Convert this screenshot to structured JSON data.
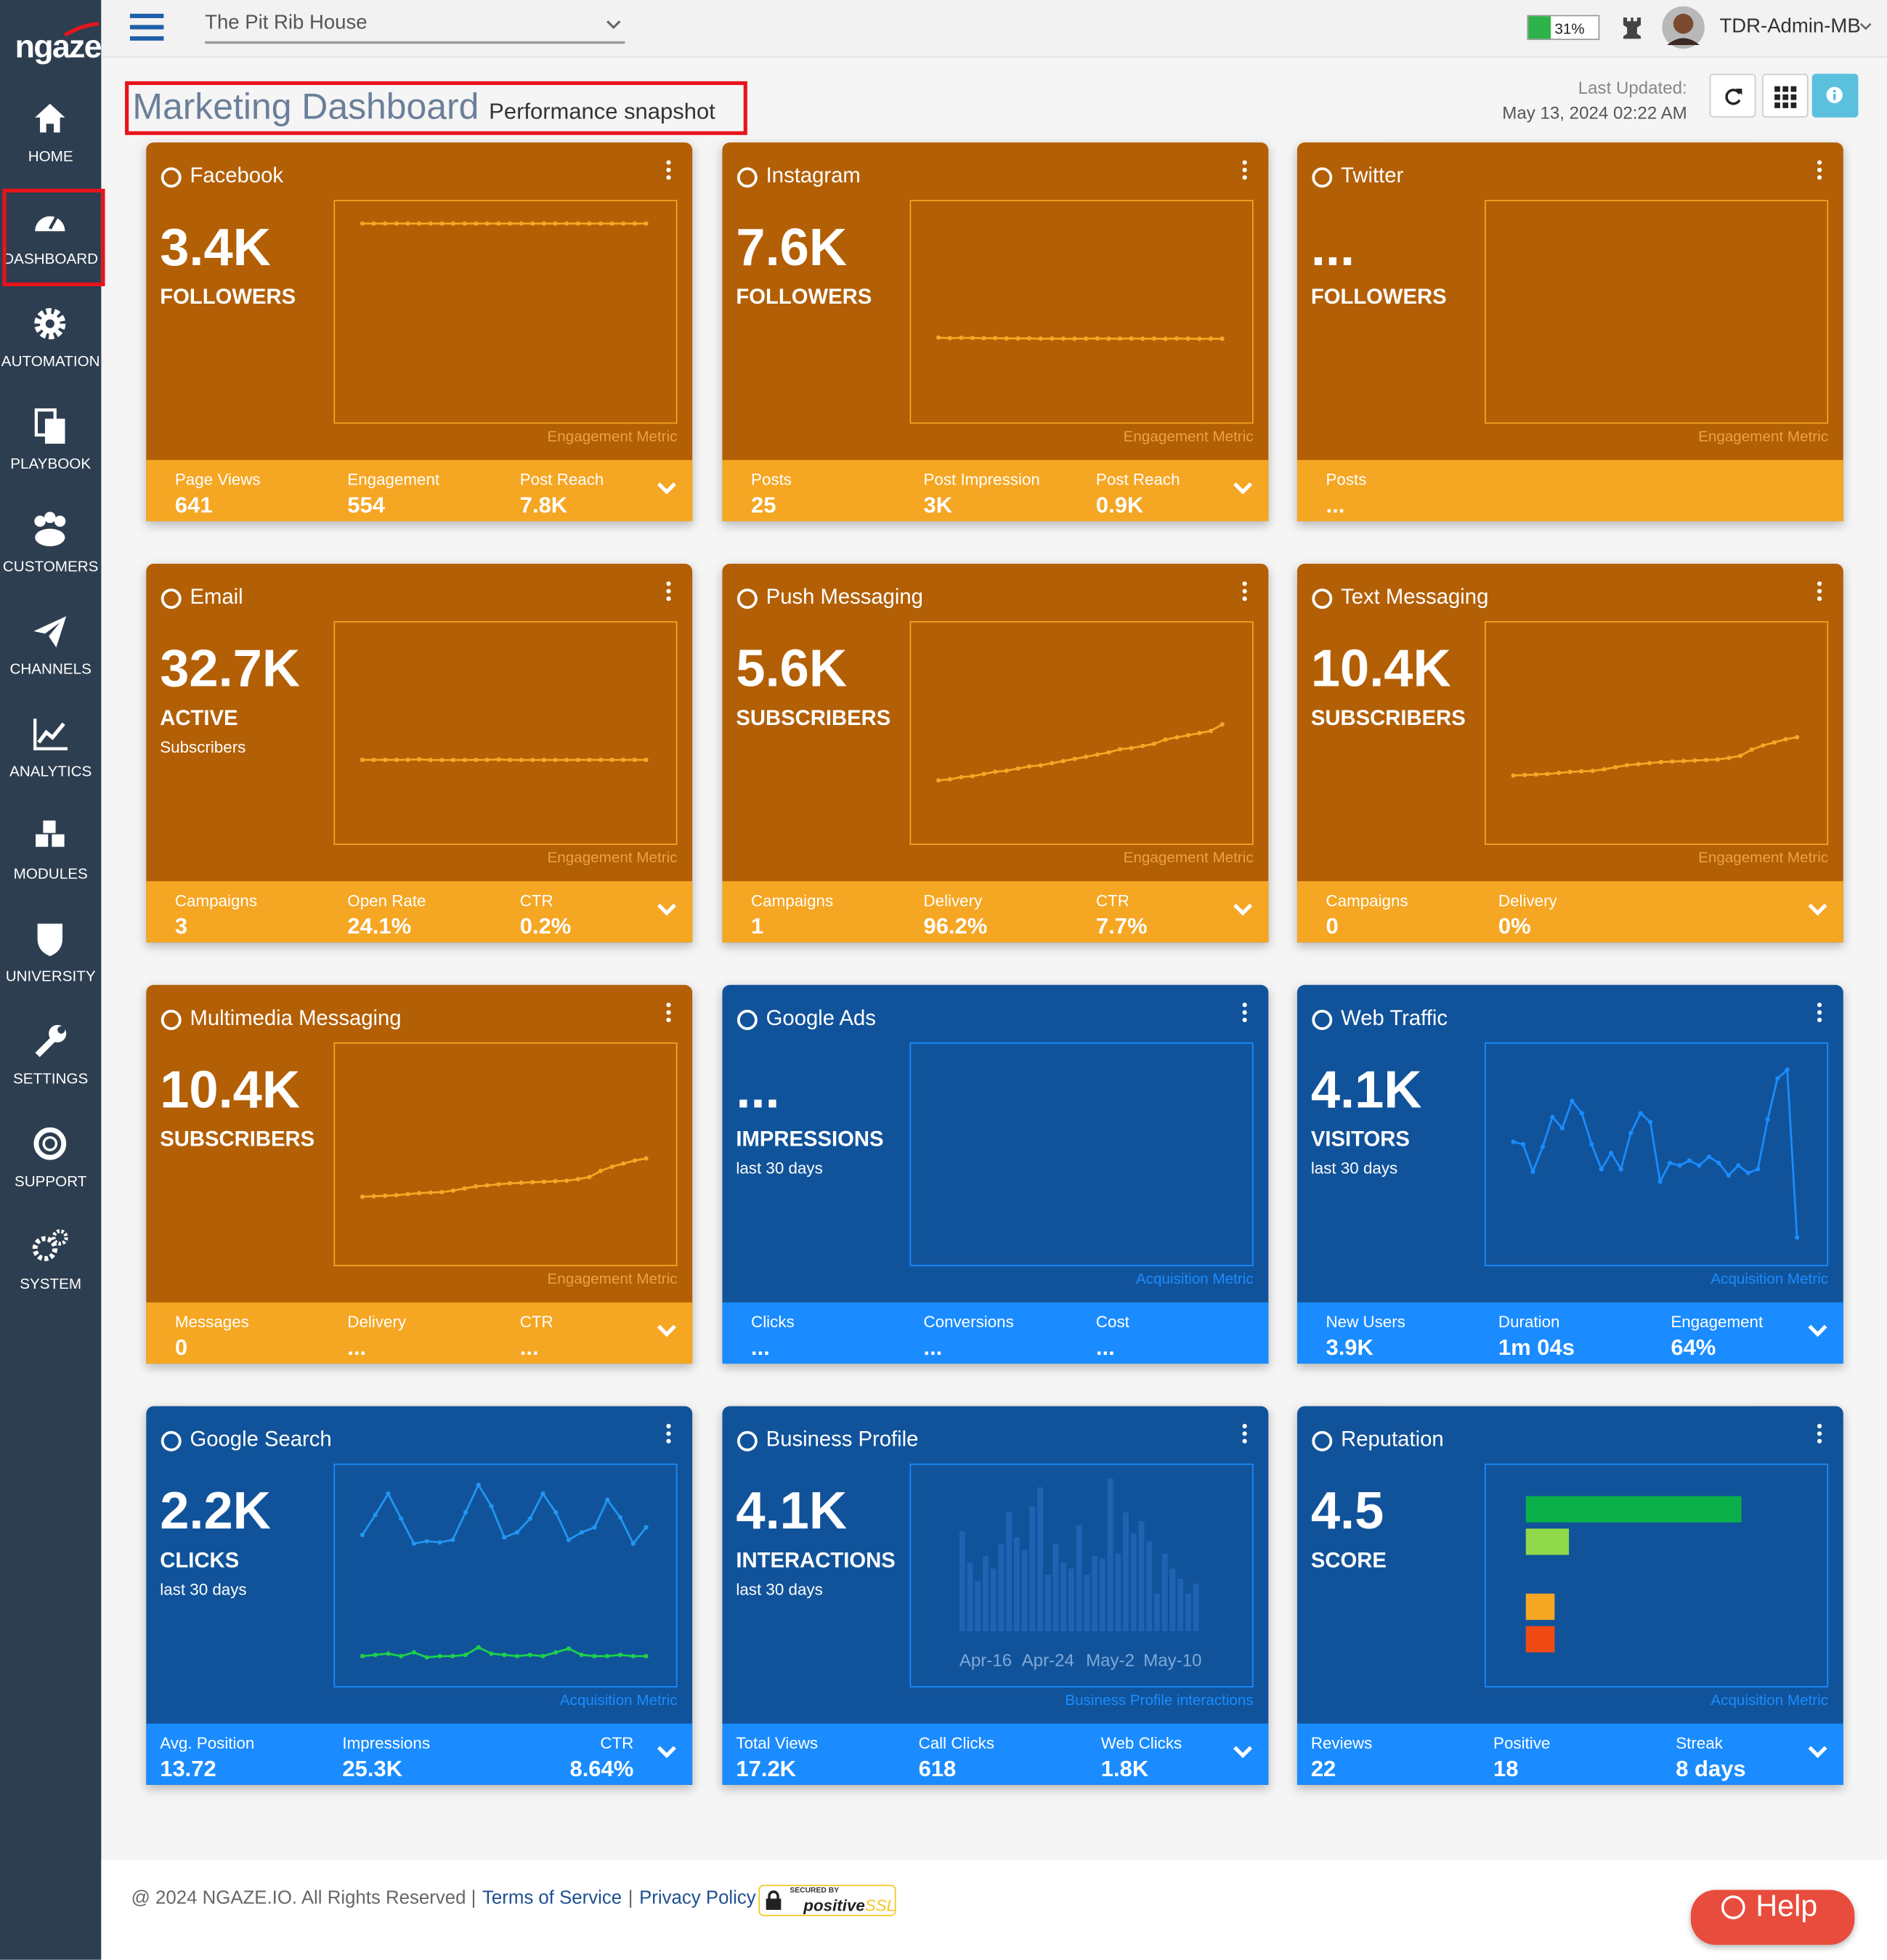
{
  "sidebar": {
    "logo": "ngaze",
    "items": [
      "HOME",
      "DASHBOARD",
      "AUTOMATION",
      "PLAYBOOK",
      "CUSTOMERS",
      "CHANNELS",
      "ANALYTICS",
      "MODULES",
      "UNIVERSITY",
      "SETTINGS",
      "SUPPORT",
      "SYSTEM"
    ]
  },
  "topbar": {
    "location": "The Pit Rib House",
    "battery": "31%",
    "user": "TDR-Admin-MB"
  },
  "header": {
    "title": "Marketing Dashboard",
    "subtitle": "Performance snapshot",
    "updated_label": "Last Updated:",
    "updated": "May 13, 2024 02:22 AM"
  },
  "cards": [
    {
      "title": "Facebook",
      "theme": "orange",
      "value": "3.4K",
      "unit": "FOLLOWERS",
      "chart": {
        "type": "line",
        "ylim": [
          0,
          3800
        ],
        "series": [
          {
            "color": "#f5a623",
            "values": [
              3400,
              3400,
              3400,
              3400,
              3400,
              3400,
              3400,
              3400,
              3400,
              3400,
              3400,
              3400,
              3400,
              3400,
              3400,
              3400,
              3400,
              3400,
              3400,
              3400,
              3400,
              3400,
              3400,
              3400,
              3400,
              3400
            ]
          }
        ]
      },
      "caption": "Engagement Metric",
      "stats": [
        {
          "label": "Page Views",
          "value": "641"
        },
        {
          "label": "Engagement",
          "value": "554"
        },
        {
          "label": "Post Reach",
          "value": "7.8K"
        }
      ]
    },
    {
      "title": "Instagram",
      "theme": "orange",
      "value": "7.6K",
      "unit": "FOLLOWERS",
      "chart": {
        "type": "line",
        "ylim": [
          0,
          20000
        ],
        "series": [
          {
            "color": "#f5a623",
            "values": [
              7700,
              7650,
              7680,
              7660,
              7640,
              7650,
              7630,
              7620,
              7630,
              7600,
              7610,
              7600,
              7600,
              7610,
              7620,
              7600,
              7610,
              7620,
              7600,
              7610,
              7590,
              7620,
              7600,
              7590,
              7600,
              7600
            ]
          }
        ]
      },
      "caption": "Engagement Metric",
      "stats": [
        {
          "label": "Posts",
          "value": "25"
        },
        {
          "label": "Post Impression",
          "value": "3K"
        },
        {
          "label": "Post Reach",
          "value": "0.9K"
        }
      ]
    },
    {
      "title": "Twitter",
      "theme": "orange",
      "value": "...",
      "unit": "FOLLOWERS",
      "chart": {
        "type": "line",
        "ylim": [
          0,
          1
        ],
        "series": []
      },
      "caption": "Engagement Metric",
      "stats": [
        {
          "label": "Posts",
          "value": "..."
        }
      ]
    },
    {
      "title": "Email",
      "theme": "orange",
      "value": "32.7K",
      "unit": "ACTIVE",
      "note": "Subscribers",
      "chart": {
        "type": "line",
        "ylim": [
          0,
          86000
        ],
        "series": [
          {
            "color": "#f5a623",
            "values": [
              32700,
              32700,
              32710,
              32700,
              32720,
              32900,
              32650,
              32640,
              32650,
              32660,
              32680,
              32700,
              32850,
              32680,
              32650,
              32660,
              32650,
              32660,
              32670,
              32680,
              32690,
              32700,
              32710,
              32700,
              32720,
              32700
            ]
          }
        ]
      },
      "caption": "Engagement Metric",
      "stats": [
        {
          "label": "Campaigns",
          "value": "3"
        },
        {
          "label": "Open Rate",
          "value": "24.1%"
        },
        {
          "label": "CTR",
          "value": "0.2%"
        }
      ]
    },
    {
      "title": "Push Messaging",
      "theme": "orange",
      "value": "5.6K",
      "unit": "SUBSCRIBERS",
      "chart": {
        "type": "line",
        "ylim": [
          0,
          10400
        ],
        "series": [
          {
            "color": "#f5a623",
            "values": [
              3000,
              3050,
              3150,
              3200,
              3300,
              3400,
              3450,
              3550,
              3650,
              3700,
              3800,
              3900,
              4000,
              4100,
              4200,
              4300,
              4450,
              4500,
              4600,
              4700,
              4900,
              5000,
              5100,
              5200,
              5300,
              5600
            ]
          }
        ]
      },
      "caption": "Engagement Metric",
      "stats": [
        {
          "label": "Campaigns",
          "value": "1"
        },
        {
          "label": "Delivery",
          "value": "96.2%"
        },
        {
          "label": "CTR",
          "value": "7.7%"
        }
      ]
    },
    {
      "title": "Text Messaging",
      "theme": "orange",
      "value": "10.4K",
      "unit": "SUBSCRIBERS",
      "chart": {
        "type": "line",
        "ylim": [
          0,
          21600
        ],
        "series": [
          {
            "color": "#f5a623",
            "values": [
              6700,
              6750,
              6800,
              6850,
              6950,
              7050,
              7100,
              7150,
              7300,
              7500,
              7700,
              7800,
              7900,
              8000,
              8050,
              8100,
              8150,
              8200,
              8250,
              8400,
              8600,
              9200,
              9600,
              9900,
              10200,
              10400
            ]
          }
        ]
      },
      "caption": "Engagement Metric",
      "stats": [
        {
          "label": "Campaigns",
          "value": "0"
        },
        {
          "label": "Delivery",
          "value": "0%"
        }
      ]
    },
    {
      "title": "Multimedia Messaging",
      "theme": "orange",
      "value": "10.4K",
      "unit": "SUBSCRIBERS",
      "chart": {
        "type": "line",
        "ylim": [
          0,
          21600
        ],
        "series": [
          {
            "color": "#f5a623",
            "values": [
              6700,
              6750,
              6800,
              6850,
              6950,
              7050,
              7100,
              7150,
              7300,
              7500,
              7700,
              7800,
              7900,
              8000,
              8050,
              8100,
              8150,
              8200,
              8250,
              8400,
              8600,
              9200,
              9600,
              9900,
              10200,
              10400
            ]
          }
        ]
      },
      "caption": "Engagement Metric",
      "stats": [
        {
          "label": "Messages",
          "value": "0"
        },
        {
          "label": "Delivery",
          "value": "..."
        },
        {
          "label": "CTR",
          "value": "..."
        }
      ]
    },
    {
      "title": "Google Ads",
      "theme": "blue",
      "value": "...",
      "unit": "IMPRESSIONS",
      "note": "last 30 days",
      "chart": {
        "type": "line",
        "ylim": [
          0,
          1
        ],
        "series": []
      },
      "caption": "Acquisition Metric",
      "stats": [
        {
          "label": "Clicks",
          "value": "..."
        },
        {
          "label": "Conversions",
          "value": "..."
        },
        {
          "label": "Cost",
          "value": "..."
        }
      ]
    },
    {
      "title": "Web Traffic",
      "theme": "blue",
      "value": "4.1K",
      "unit": "VISITORS",
      "note": "last 30 days",
      "chart": {
        "type": "line",
        "ylim": [
          0,
          360
        ],
        "series": [
          {
            "color": "#1a8cff",
            "values": [
              200,
              196,
              152,
              192,
              240,
              222,
              266,
              246,
              196,
              156,
              182,
              156,
              214,
              246,
              232,
              136,
              166,
              162,
              170,
              162,
              176,
              166,
              146,
              162,
              150,
              156,
              236,
              302,
              316,
              46
            ]
          }
        ]
      },
      "caption": "Acquisition Metric",
      "stats": [
        {
          "label": "New Users",
          "value": "3.9K"
        },
        {
          "label": "Duration",
          "value": "1m 04s"
        },
        {
          "label": "Engagement",
          "value": "64%"
        }
      ]
    },
    {
      "title": "Google Search",
      "theme": "blue",
      "value": "2.2K",
      "unit": "CLICKS",
      "note": "last 30 days",
      "chart": {
        "type": "line",
        "ylim": [
          0,
          179
        ],
        "series": [
          {
            "color": "#2196f3",
            "values": [
              122,
              138,
              155,
              135,
              115,
              117,
              116,
              118,
              140,
              162,
              145,
              120,
              124,
              135,
              155,
              140,
              118,
              124,
              128,
              150,
              136,
              115,
              128
            ]
          },
          {
            "color": "#1dd14a",
            "values": [
              25,
              26,
              27,
              25,
              28,
              24,
              25,
              25,
              26,
              32,
              27,
              26,
              25,
              26,
              25,
              28,
              31,
              26,
              25,
              25,
              26,
              25,
              25
            ]
          }
        ]
      },
      "caption": "Acquisition Metric",
      "stats": [
        {
          "label": "Avg. Position",
          "value": "13.72"
        },
        {
          "label": "Impressions",
          "value": "25.3K"
        },
        {
          "label": "CTR",
          "value": "8.64%"
        }
      ]
    },
    {
      "title": "Business Profile",
      "theme": "blue",
      "value": "4.1K",
      "unit": "INTERACTIONS",
      "note": "last 30 days",
      "chart": {
        "type": "bar",
        "ylim": [
          0,
          134
        ],
        "color": "#1f63b3",
        "categories": [
          null,
          null,
          null,
          "Apr-16",
          null,
          null,
          null,
          null,
          null,
          null,
          null,
          "Apr-24",
          null,
          null,
          null,
          null,
          null,
          null,
          null,
          "May-2",
          null,
          null,
          null,
          null,
          null,
          null,
          null,
          "May-10",
          null,
          null,
          null
        ],
        "values": [
          80,
          55,
          40,
          60,
          50,
          70,
          95,
          75,
          65,
          100,
          115,
          45,
          70,
          55,
          50,
          85,
          45,
          60,
          58,
          122,
          62,
          95,
          78,
          88,
          72,
          30,
          62,
          50,
          42,
          30,
          38
        ]
      },
      "caption": "Business Profile interactions",
      "stats": [
        {
          "label": "Total Views",
          "value": "17.2K"
        },
        {
          "label": "Call Clicks",
          "value": "618"
        },
        {
          "label": "Web Clicks",
          "value": "1.8K"
        }
      ]
    },
    {
      "title": "Reputation",
      "theme": "blue",
      "value": "4.5",
      "unit": "SCORE",
      "chart": {
        "type": "hbar",
        "xlim": [
          0,
          20
        ],
        "values": [
          15,
          3,
          0,
          2,
          2
        ],
        "colors": [
          "#0bb04a",
          "#8fd94a",
          "#f5c623",
          "#f5a623",
          "#f04a14"
        ]
      },
      "caption": "Acquisition Metric",
      "stats": [
        {
          "label": "Reviews",
          "value": "22"
        },
        {
          "label": "Positive",
          "value": "18"
        },
        {
          "label": "Streak",
          "value": "8 days"
        }
      ]
    }
  ],
  "footer": {
    "copyright": "@ 2024 NGAZE.IO. All Rights Reserved |",
    "terms": "Terms of Service",
    "sep": "|",
    "privacy": "Privacy Policy",
    "badge_top": "SECURED BY",
    "badge_brand": "positive",
    "badge_suffix": "SSL",
    "help": "Help"
  }
}
